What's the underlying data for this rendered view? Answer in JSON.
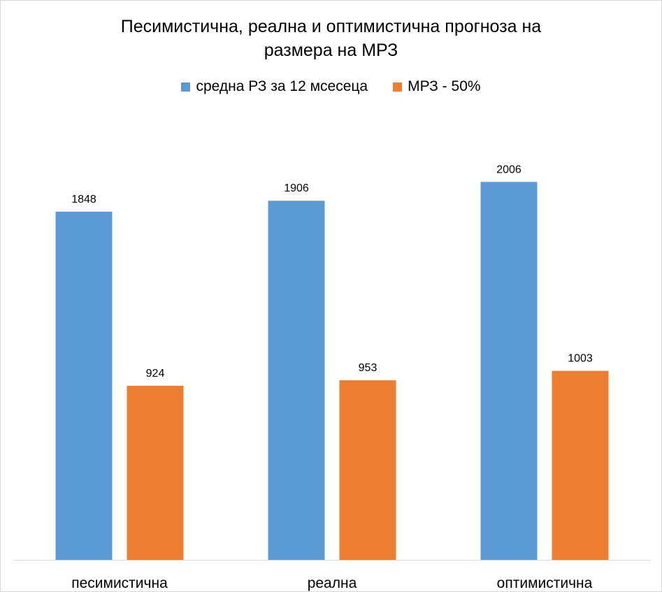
{
  "chart_data": {
    "type": "bar",
    "title_lines": [
      "Песимистична, реална и оптимистична прогноза на",
      "размера на МРЗ"
    ],
    "categories": [
      "песимистична",
      "реална",
      "оптимистична"
    ],
    "series": [
      {
        "name": "средна РЗ за 12 мсесеца",
        "values": [
          1848,
          1906,
          2006
        ],
        "color": "#5b9bd5"
      },
      {
        "name": "МРЗ - 50%",
        "values": [
          924,
          953,
          1003
        ],
        "color": "#ed7d31"
      }
    ],
    "ylim": [
      0,
      2300
    ],
    "grid": false,
    "legend_position": "top"
  }
}
